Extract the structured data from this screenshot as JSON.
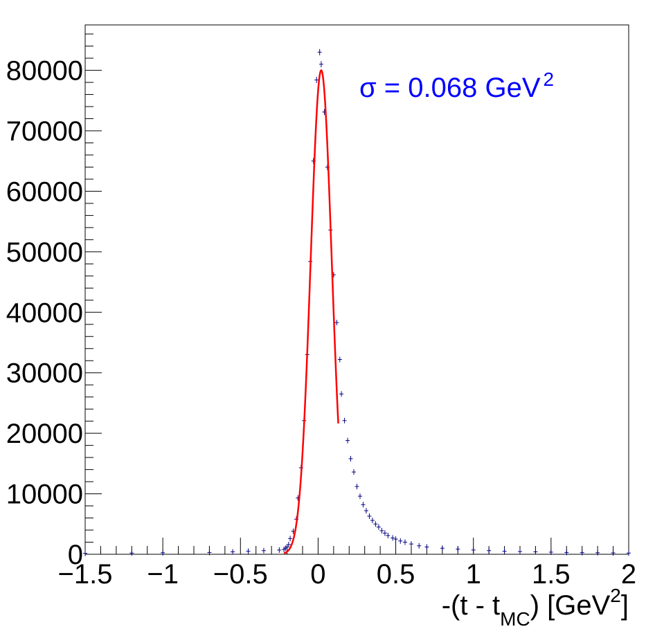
{
  "chart_data": {
    "type": "scatter",
    "xlim": [
      -1.5,
      2
    ],
    "ylim": [
      0,
      87500
    ],
    "x_ticks": [
      {
        "v": -1.5,
        "label": "−1.5"
      },
      {
        "v": -1,
        "label": "−1"
      },
      {
        "v": -0.5,
        "label": "−0.5"
      },
      {
        "v": 0,
        "label": "0"
      },
      {
        "v": 0.5,
        "label": "0.5"
      },
      {
        "v": 1,
        "label": "1"
      },
      {
        "v": 1.5,
        "label": "1.5"
      },
      {
        "v": 2,
        "label": "2"
      }
    ],
    "y_ticks": [
      {
        "v": 0,
        "label": "0"
      },
      {
        "v": 10000,
        "label": "10000"
      },
      {
        "v": 20000,
        "label": "20000"
      },
      {
        "v": 30000,
        "label": "30000"
      },
      {
        "v": 40000,
        "label": "40000"
      },
      {
        "v": 50000,
        "label": "50000"
      },
      {
        "v": 60000,
        "label": "60000"
      },
      {
        "v": 70000,
        "label": "70000"
      },
      {
        "v": 80000,
        "label": "80000"
      }
    ],
    "xlabel": {
      "pre": "-(t - t",
      "sub": "MC",
      "mid": ") [GeV",
      "sup": "2",
      "post": "]"
    },
    "ylabel": "",
    "annotation": {
      "text": "σ = 0.068 GeV",
      "sup": "2",
      "color": "#0000ff"
    },
    "grid": false,
    "series": [
      {
        "kind": "data-points",
        "color": "#000080",
        "points": [
          [
            -1.5,
            150
          ],
          [
            -1.2,
            200
          ],
          [
            -1.0,
            250
          ],
          [
            -0.7,
            300
          ],
          [
            -0.55,
            400
          ],
          [
            -0.45,
            500
          ],
          [
            -0.35,
            600
          ],
          [
            -0.25,
            700
          ],
          [
            -0.22,
            800
          ],
          [
            -0.21,
            1000
          ],
          [
            -0.2,
            1200
          ],
          [
            -0.19,
            1600
          ],
          [
            -0.18,
            2600
          ],
          [
            -0.16,
            3800
          ],
          [
            -0.14,
            5800
          ],
          [
            -0.13,
            9300
          ],
          [
            -0.11,
            14300
          ],
          [
            -0.09,
            22100
          ],
          [
            -0.07,
            33000
          ],
          [
            -0.05,
            48400
          ],
          [
            -0.03,
            65000
          ],
          [
            -0.01,
            78400
          ],
          [
            0.01,
            83000
          ],
          [
            0.02,
            81000
          ],
          [
            0.04,
            73100
          ],
          [
            0.06,
            64000
          ],
          [
            0.08,
            53600
          ],
          [
            0.1,
            46200
          ],
          [
            0.12,
            38300
          ],
          [
            0.14,
            32200
          ],
          [
            0.15,
            26500
          ],
          [
            0.17,
            22100
          ],
          [
            0.19,
            18800
          ],
          [
            0.21,
            15800
          ],
          [
            0.23,
            13600
          ],
          [
            0.25,
            11200
          ],
          [
            0.27,
            9600
          ],
          [
            0.29,
            8200
          ],
          [
            0.31,
            7200
          ],
          [
            0.33,
            6300
          ],
          [
            0.35,
            5600
          ],
          [
            0.37,
            5000
          ],
          [
            0.39,
            4500
          ],
          [
            0.41,
            3900
          ],
          [
            0.43,
            3500
          ],
          [
            0.45,
            3100
          ],
          [
            0.48,
            2700
          ],
          [
            0.5,
            2500
          ],
          [
            0.53,
            2200
          ],
          [
            0.56,
            2000
          ],
          [
            0.6,
            1700
          ],
          [
            0.65,
            1400
          ],
          [
            0.7,
            1200
          ],
          [
            0.8,
            1000
          ],
          [
            0.9,
            850
          ],
          [
            1.0,
            700
          ],
          [
            1.1,
            600
          ],
          [
            1.2,
            500
          ],
          [
            1.3,
            450
          ],
          [
            1.4,
            400
          ],
          [
            1.5,
            350
          ],
          [
            1.6,
            300
          ],
          [
            1.7,
            270
          ],
          [
            1.8,
            250
          ],
          [
            1.9,
            230
          ],
          [
            2.0,
            200
          ]
        ]
      },
      {
        "kind": "gaussian-fit",
        "color": "#ff0000",
        "mean": 0.02,
        "sigma": 0.068,
        "amplitude": 80000,
        "x_range": [
          -0.22,
          0.13
        ]
      }
    ]
  }
}
